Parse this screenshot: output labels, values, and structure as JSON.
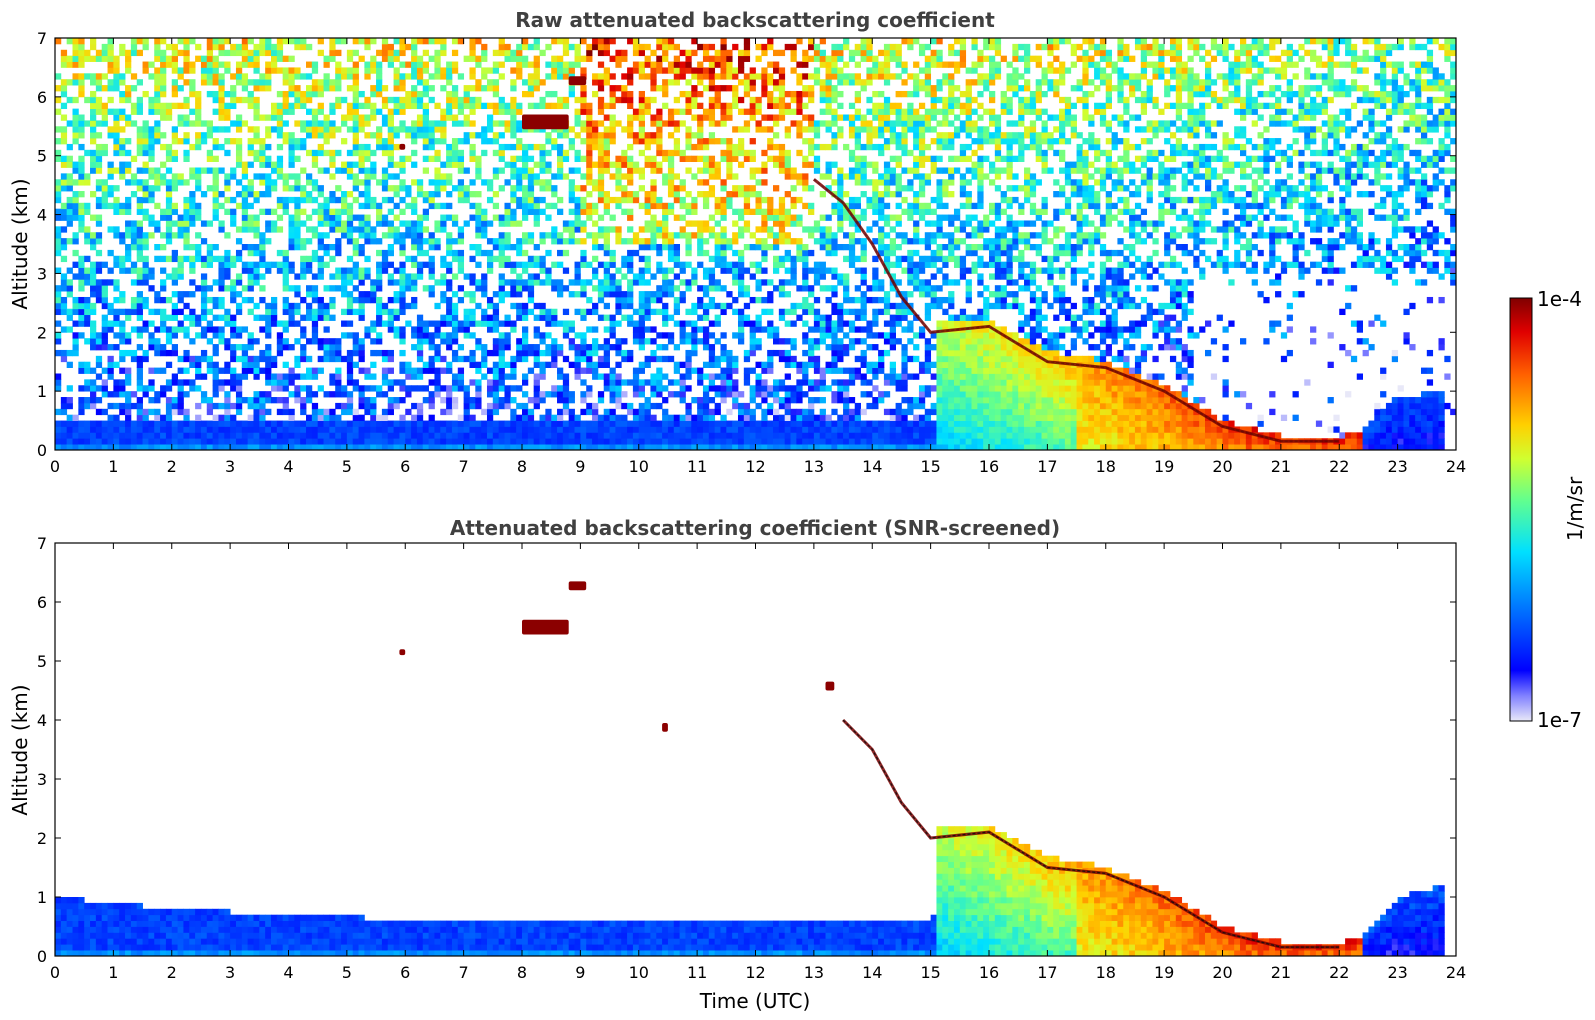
{
  "chart_data": [
    {
      "type": "heatmap",
      "title": "Raw attenuated backscattering coefficient",
      "xlabel": "",
      "ylabel": "Altitude (km)",
      "xlim": [
        0,
        24
      ],
      "ylim": [
        0,
        7
      ],
      "xticks": [
        "0",
        "1",
        "2",
        "3",
        "4",
        "5",
        "6",
        "7",
        "8",
        "9",
        "10",
        "11",
        "12",
        "13",
        "14",
        "15",
        "16",
        "17",
        "18",
        "19",
        "20",
        "21",
        "22",
        "23",
        "24"
      ],
      "yticks": [
        "0",
        "1",
        "2",
        "3",
        "4",
        "5",
        "6",
        "7"
      ],
      "features": {
        "surface_layer": {
          "x": [
            0,
            15.1
          ],
          "top_km": 0.5,
          "level": 0.2
        },
        "boundary_layer": {
          "x": [
            15.1,
            23.8
          ],
          "top_km": [
            [
              15.1,
              2.2
            ],
            [
              16,
              2.2
            ],
            [
              17,
              1.7
            ],
            [
              18,
              1.5
            ],
            [
              19,
              1.1
            ],
            [
              20,
              0.5
            ],
            [
              21,
              0.25
            ],
            [
              22,
              0.2
            ],
            [
              22.5,
              0.4
            ],
            [
              23,
              0.9
            ],
            [
              23.8,
              1.0
            ]
          ]
        },
        "cloud_top_trace": [
          [
            13.0,
            4.6
          ],
          [
            13.5,
            4.2
          ],
          [
            14.0,
            3.5
          ],
          [
            14.5,
            2.6
          ],
          [
            15.0,
            2.0
          ],
          [
            16.0,
            2.1
          ],
          [
            17.0,
            1.5
          ],
          [
            18.0,
            1.4
          ],
          [
            19.0,
            1.0
          ],
          [
            20.0,
            0.4
          ],
          [
            21.0,
            0.15
          ],
          [
            22.0,
            0.15
          ]
        ],
        "aerosol_patches": [
          {
            "x": [
              8.0,
              8.8
            ],
            "y": [
              5.45,
              5.7
            ]
          },
          {
            "x": [
              8.8,
              9.1
            ],
            "y": [
              6.2,
              6.35
            ]
          },
          {
            "x": [
              5.9,
              6.0
            ],
            "y": [
              5.1,
              5.2
            ]
          }
        ],
        "noisy_upper_region": true
      }
    },
    {
      "type": "heatmap",
      "title": "Attenuated backscattering coefficient (SNR-screened)",
      "xlabel": "Time (UTC)",
      "ylabel": "Altitude (km)",
      "xlim": [
        0,
        24
      ],
      "ylim": [
        0,
        7
      ],
      "xticks": [
        "0",
        "1",
        "2",
        "3",
        "4",
        "5",
        "6",
        "7",
        "8",
        "9",
        "10",
        "11",
        "12",
        "13",
        "14",
        "15",
        "16",
        "17",
        "18",
        "19",
        "20",
        "21",
        "22",
        "23",
        "24"
      ],
      "yticks": [
        "0",
        "1",
        "2",
        "3",
        "4",
        "5",
        "6",
        "7"
      ],
      "features": {
        "surface_layer": {
          "x": [
            0,
            15.1
          ],
          "top_km": [
            [
              0,
              1.0
            ],
            [
              2,
              0.8
            ],
            [
              4,
              0.7
            ],
            [
              8,
              0.55
            ],
            [
              12,
              0.55
            ],
            [
              15,
              0.65
            ]
          ],
          "level": 0.2
        },
        "boundary_layer": {
          "x": [
            15.1,
            23.8
          ],
          "top_km": [
            [
              15.1,
              2.2
            ],
            [
              16,
              2.2
            ],
            [
              17,
              1.7
            ],
            [
              18,
              1.5
            ],
            [
              19,
              1.1
            ],
            [
              20,
              0.5
            ],
            [
              21,
              0.25
            ],
            [
              22,
              0.2
            ],
            [
              22.5,
              0.4
            ],
            [
              23,
              1.0
            ],
            [
              23.8,
              1.2
            ]
          ]
        },
        "cloud_top_trace": [
          [
            13.5,
            4.0
          ],
          [
            14.0,
            3.5
          ],
          [
            14.5,
            2.6
          ],
          [
            15.0,
            2.0
          ],
          [
            16.0,
            2.1
          ],
          [
            17.0,
            1.5
          ],
          [
            18.0,
            1.4
          ],
          [
            19.0,
            1.0
          ],
          [
            20.0,
            0.4
          ],
          [
            21.0,
            0.15
          ],
          [
            22.0,
            0.15
          ]
        ],
        "aerosol_patches": [
          {
            "x": [
              8.0,
              8.8
            ],
            "y": [
              5.45,
              5.7
            ]
          },
          {
            "x": [
              8.8,
              9.1
            ],
            "y": [
              6.2,
              6.35
            ]
          },
          {
            "x": [
              5.9,
              6.0
            ],
            "y": [
              5.1,
              5.2
            ]
          },
          {
            "x": [
              10.4,
              10.5
            ],
            "y": [
              3.8,
              3.95
            ]
          },
          {
            "x": [
              13.2,
              13.35
            ],
            "y": [
              4.5,
              4.65
            ]
          }
        ],
        "noisy_upper_region": false
      }
    }
  ],
  "colorbar": {
    "label": "1/m/sr",
    "max_label": "1e-4",
    "min_label": "1e-7",
    "scale": "log",
    "colormap": "jet"
  }
}
